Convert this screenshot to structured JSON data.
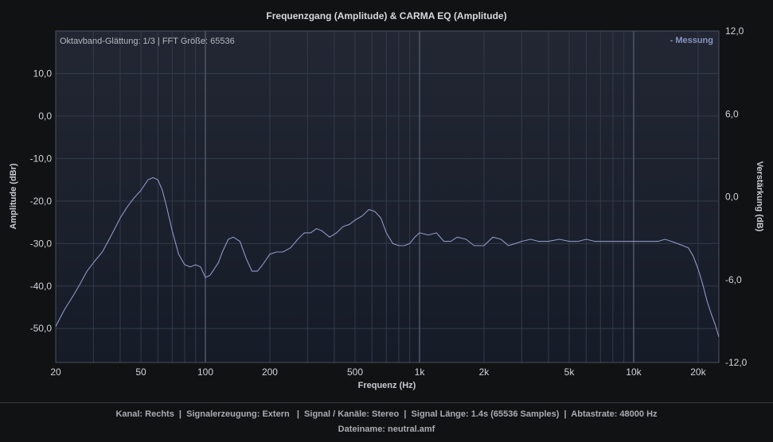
{
  "chart_data": {
    "type": "line",
    "title": "Frequenzgang (Amplitude) & CARMA EQ (Amplitude)",
    "info": "Oktavband-Glättung: 1/3 | FFT Größe: 65536",
    "xlabel": "Frequenz (Hz)",
    "ylabel": "Amplitude (dBr)",
    "ylabel_right": "Verstärkung (dB)",
    "x_scale": "log",
    "xlim": [
      20,
      25000
    ],
    "ylim": [
      -58,
      20
    ],
    "ylim_right": [
      -12,
      12
    ],
    "grid": true,
    "legend_position": "top-right",
    "x_ticks": [
      {
        "value": 20,
        "label": "20"
      },
      {
        "value": 50,
        "label": "50"
      },
      {
        "value": 100,
        "label": "100"
      },
      {
        "value": 200,
        "label": "200"
      },
      {
        "value": 500,
        "label": "500"
      },
      {
        "value": 1000,
        "label": "1k"
      },
      {
        "value": 2000,
        "label": "2k"
      },
      {
        "value": 5000,
        "label": "5k"
      },
      {
        "value": 10000,
        "label": "10k"
      },
      {
        "value": 20000,
        "label": "20k"
      }
    ],
    "y_ticks": [
      {
        "value": 10,
        "label": "10,0"
      },
      {
        "value": 0,
        "label": "0,0"
      },
      {
        "value": -10,
        "label": "-10,0"
      },
      {
        "value": -20,
        "label": "-20,0"
      },
      {
        "value": -30,
        "label": "-30,0"
      },
      {
        "value": -40,
        "label": "-40,0"
      },
      {
        "value": -50,
        "label": "-50,0"
      }
    ],
    "y_ticks_right": [
      {
        "value": 12,
        "label": "12,0"
      },
      {
        "value": 6,
        "label": "6,0"
      },
      {
        "value": 0,
        "label": "0,0"
      },
      {
        "value": -6,
        "label": "-6,0"
      },
      {
        "value": -12,
        "label": "-12,0"
      }
    ],
    "series": [
      {
        "name": "- Messung",
        "color": "#8e97c6",
        "x": [
          20,
          22,
          24,
          26,
          28,
          30,
          33,
          36,
          40,
          43,
          46,
          50,
          54,
          57,
          60,
          63,
          66,
          70,
          75,
          80,
          85,
          90,
          95,
          100,
          105,
          110,
          115,
          120,
          128,
          135,
          145,
          155,
          165,
          175,
          185,
          200,
          215,
          230,
          250,
          270,
          290,
          310,
          330,
          350,
          380,
          410,
          440,
          470,
          500,
          540,
          580,
          620,
          660,
          700,
          750,
          800,
          850,
          900,
          950,
          1000,
          1100,
          1200,
          1300,
          1400,
          1500,
          1650,
          1800,
          2000,
          2200,
          2400,
          2600,
          2800,
          3000,
          3300,
          3600,
          4000,
          4500,
          5000,
          5500,
          6000,
          6600,
          7200,
          8000,
          9000,
          10000,
          11000,
          12000,
          13000,
          14000,
          15000,
          16000,
          17000,
          18000,
          19000,
          20000,
          21000,
          22000,
          23000,
          24000,
          25000
        ],
        "y": [
          -49.5,
          -45.5,
          -42.5,
          -39.5,
          -36.5,
          -34.5,
          -32,
          -28.5,
          -24,
          -21.5,
          -19.5,
          -17.5,
          -15,
          -14.5,
          -15,
          -17.5,
          -21.5,
          -27,
          -32.5,
          -35,
          -35.5,
          -35,
          -35.5,
          -38,
          -37.5,
          -36,
          -34.5,
          -32,
          -29,
          -28.5,
          -29.5,
          -33.5,
          -36.5,
          -36.5,
          -35,
          -32.5,
          -32,
          -32,
          -31,
          -29,
          -27.5,
          -27.5,
          -26.5,
          -27,
          -28.5,
          -27.5,
          -26,
          -25.5,
          -24.5,
          -23.5,
          -22,
          -22.5,
          -24,
          -27.5,
          -30,
          -30.5,
          -30.5,
          -30,
          -28.5,
          -27.5,
          -28,
          -27.5,
          -29.5,
          -29.5,
          -28.5,
          -29,
          -30.5,
          -30.5,
          -28.5,
          -29,
          -30.5,
          -30,
          -29.5,
          -29,
          -29.5,
          -29.5,
          -29,
          -29.5,
          -29.5,
          -29,
          -29.5,
          -29.5,
          -29.5,
          -29.5,
          -29.5,
          -29.5,
          -29.5,
          -29.5,
          -29,
          -29.5,
          -30,
          -30.5,
          -31,
          -33,
          -36,
          -39.5,
          -43.5,
          -46.5,
          -49,
          -52
        ]
      }
    ]
  },
  "footer": {
    "line1": "Kanal: Rechts  |  Signalerzeugung: Extern   |  Signal / Kanäle: Stereo  |  Signal Länge: 1.4s (65536 Samples)  |  Abtastrate: 48000 Hz",
    "line2": "Dateiname: neutral.amf"
  }
}
